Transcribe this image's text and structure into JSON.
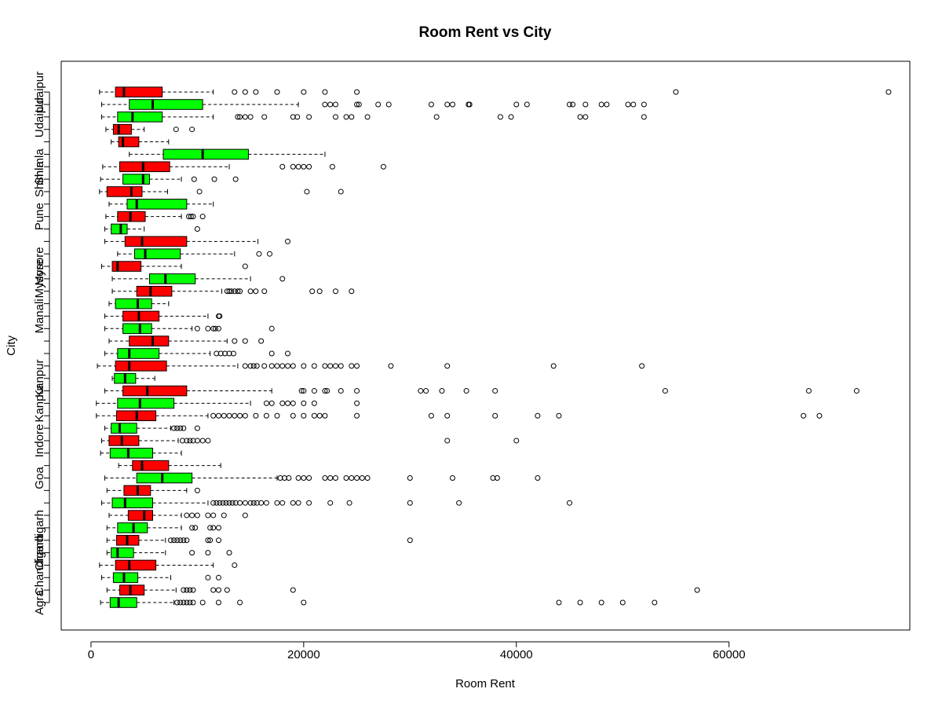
{
  "chart_data": {
    "type": "boxplot",
    "orientation": "horizontal",
    "title": "Room Rent vs City",
    "xlabel": "Room Rent",
    "ylabel": "City",
    "xlim": [
      -2800,
      77000
    ],
    "xticks": [
      0,
      20000,
      40000,
      60000
    ],
    "xtick_labels": [
      "0",
      "20000",
      "40000",
      "60000"
    ],
    "colors": {
      "alternate_a": "#00ff00",
      "alternate_b": "#ff0000",
      "outline": "#000000"
    },
    "y_tick_labels": [
      {
        "label": "Agra",
        "row": 1
      },
      {
        "label": "Chandigarh",
        "row": 4
      },
      {
        "label": "Chandigarh",
        "row": 6
      },
      {
        "label": "Goa",
        "row": 11
      },
      {
        "label": "Indore",
        "row": 14
      },
      {
        "label": "Kanpur",
        "row": 17
      },
      {
        "label": "Kanpur",
        "row": 19
      },
      {
        "label": "Manali",
        "row": 24
      },
      {
        "label": "Mysore",
        "row": 27
      },
      {
        "label": "Mysore",
        "row": 28
      },
      {
        "label": "Pune",
        "row": 32
      },
      {
        "label": "Shimla",
        "row": 35
      },
      {
        "label": "Shimla",
        "row": 36
      },
      {
        "label": "Udaipur",
        "row": 40
      },
      {
        "label": "Udaipur",
        "row": 42
      }
    ],
    "boxes": [
      {
        "row": 1,
        "color": "green",
        "wl": 900,
        "q1": 1800,
        "med": 2600,
        "q3": 4300,
        "wh": 7800,
        "outliers": [
          8100,
          8400,
          8700,
          9000,
          9300,
          9600,
          10500,
          12000,
          14000,
          20000,
          44000,
          46000,
          48000,
          50000,
          53000
        ]
      },
      {
        "row": 2,
        "color": "red",
        "wl": 1500,
        "q1": 2700,
        "med": 3700,
        "q3": 5000,
        "wh": 8000,
        "outliers": [
          8700,
          9000,
          9300,
          9600,
          11500,
          12000,
          12800,
          19000,
          57000
        ]
      },
      {
        "row": 3,
        "color": "green",
        "wl": 1000,
        "q1": 2100,
        "med": 3100,
        "q3": 4400,
        "wh": 7500,
        "outliers": [
          11000,
          12000
        ]
      },
      {
        "row": 4,
        "color": "red",
        "wl": 800,
        "q1": 2300,
        "med": 3600,
        "q3": 6100,
        "wh": 11500,
        "outliers": [
          13500
        ]
      },
      {
        "row": 5,
        "color": "green",
        "wl": 1500,
        "q1": 1900,
        "med": 2500,
        "q3": 4000,
        "wh": 7000,
        "outliers": [
          9500,
          11000,
          13000
        ]
      },
      {
        "row": 6,
        "color": "red",
        "wl": 1500,
        "q1": 2400,
        "med": 3400,
        "q3": 4500,
        "wh": 7000,
        "outliers": [
          7500,
          7800,
          8100,
          8400,
          8700,
          9000,
          11000,
          11200,
          12000,
          30000
        ]
      },
      {
        "row": 7,
        "color": "green",
        "wl": 1500,
        "q1": 2500,
        "med": 4000,
        "q3": 5300,
        "wh": 8500,
        "outliers": [
          9500,
          9800,
          11200,
          11500,
          12000
        ]
      },
      {
        "row": 8,
        "color": "red",
        "wl": 1700,
        "q1": 3500,
        "med": 5000,
        "q3": 5800,
        "wh": 8500,
        "outliers": [
          9000,
          9500,
          10000,
          11000,
          11500,
          12500,
          14500
        ]
      },
      {
        "row": 9,
        "color": "green",
        "wl": 1000,
        "q1": 2000,
        "med": 3200,
        "q3": 5800,
        "wh": 11000,
        "outliers": [
          11500,
          11800,
          12100,
          12400,
          12700,
          13000,
          13300,
          13600,
          14000,
          14500,
          15000,
          15300,
          15600,
          16000,
          16500,
          17500,
          18000,
          19000,
          19500,
          20500,
          22500,
          24300,
          30000,
          34600,
          45000
        ]
      },
      {
        "row": 10,
        "color": "red",
        "wl": 1500,
        "q1": 3100,
        "med": 4400,
        "q3": 5600,
        "wh": 9000,
        "outliers": [
          10000
        ]
      },
      {
        "row": 11,
        "color": "green",
        "wl": 1300,
        "q1": 4300,
        "med": 6700,
        "q3": 9500,
        "wh": 17500,
        "outliers": [
          17800,
          18200,
          18600,
          19500,
          20000,
          20500,
          22000,
          22500,
          23000,
          24000,
          24500,
          25000,
          25500,
          26000,
          30000,
          34000,
          37800,
          38200,
          42000
        ]
      },
      {
        "row": 12,
        "color": "red",
        "wl": 2600,
        "q1": 3900,
        "med": 4800,
        "q3": 7300,
        "wh": 12200,
        "outliers": []
      },
      {
        "row": 13,
        "color": "green",
        "wl": 900,
        "q1": 1800,
        "med": 3500,
        "q3": 5800,
        "wh": 8500,
        "outliers": []
      },
      {
        "row": 14,
        "color": "red",
        "wl": 1000,
        "q1": 1700,
        "med": 2900,
        "q3": 4500,
        "wh": 8200,
        "outliers": [
          8600,
          9000,
          9300,
          9600,
          10000,
          10500,
          11000,
          33500,
          40000
        ]
      },
      {
        "row": 15,
        "color": "green",
        "wl": 1300,
        "q1": 1900,
        "med": 2700,
        "q3": 4300,
        "wh": 7500,
        "outliers": [
          7800,
          8100,
          8400,
          8700,
          10000
        ]
      },
      {
        "row": 16,
        "color": "red",
        "wl": 500,
        "q1": 2400,
        "med": 4300,
        "q3": 6100,
        "wh": 11000,
        "outliers": [
          11500,
          12000,
          12500,
          13000,
          13500,
          14000,
          14500,
          15500,
          16500,
          17500,
          19000,
          20000,
          21000,
          21500,
          22000,
          25000,
          32000,
          33500,
          38000,
          42000,
          44000,
          67000,
          68500
        ]
      },
      {
        "row": 17,
        "color": "green",
        "wl": 500,
        "q1": 2500,
        "med": 4600,
        "q3": 7800,
        "wh": 15000,
        "outliers": [
          16500,
          17000,
          18000,
          18500,
          19000,
          20000,
          21000,
          25000
        ]
      },
      {
        "row": 18,
        "color": "red",
        "wl": 1300,
        "q1": 3000,
        "med": 5300,
        "q3": 9000,
        "wh": 17000,
        "outliers": [
          19800,
          20000,
          21000,
          22000,
          22200,
          23500,
          25000,
          31000,
          31500,
          33000,
          35300,
          38000,
          54000,
          67500,
          72000
        ]
      },
      {
        "row": 19,
        "color": "green",
        "wl": 2000,
        "q1": 2200,
        "med": 3200,
        "q3": 4200,
        "wh": 6000,
        "outliers": []
      },
      {
        "row": 20,
        "color": "red",
        "wl": 600,
        "q1": 2300,
        "med": 3600,
        "q3": 7100,
        "wh": 13800,
        "outliers": [
          14500,
          15000,
          15300,
          15600,
          16300,
          17000,
          17500,
          18000,
          18500,
          19000,
          20000,
          21000,
          22000,
          22500,
          23000,
          23500,
          24500,
          25000,
          28200,
          33500,
          43500,
          51800
        ]
      },
      {
        "row": 21,
        "color": "green",
        "wl": 1300,
        "q1": 2500,
        "med": 3600,
        "q3": 6400,
        "wh": 11200,
        "outliers": [
          11800,
          12200,
          12600,
          13000,
          13400,
          17000,
          18500
        ]
      },
      {
        "row": 22,
        "color": "red",
        "wl": 1700,
        "q1": 3600,
        "med": 5800,
        "q3": 7300,
        "wh": 12800,
        "outliers": [
          13500,
          14500,
          16000
        ]
      },
      {
        "row": 23,
        "color": "green",
        "wl": 1300,
        "q1": 3000,
        "med": 4600,
        "q3": 5700,
        "wh": 9500,
        "outliers": [
          10000,
          11000,
          11500,
          11700,
          12000,
          17000
        ]
      },
      {
        "row": 24,
        "color": "red",
        "wl": 1300,
        "q1": 3000,
        "med": 4500,
        "q3": 6400,
        "wh": 11000,
        "outliers": [
          12000,
          12100
        ]
      },
      {
        "row": 25,
        "color": "green",
        "wl": 1700,
        "q1": 2300,
        "med": 4400,
        "q3": 5700,
        "wh": 7300,
        "outliers": []
      },
      {
        "row": 26,
        "color": "red",
        "wl": 2000,
        "q1": 4300,
        "med": 5600,
        "q3": 7600,
        "wh": 12300,
        "outliers": [
          12800,
          13000,
          13200,
          13500,
          13800,
          14000,
          15000,
          15500,
          16300,
          20800,
          21500,
          23000,
          24500
        ]
      },
      {
        "row": 27,
        "color": "green",
        "wl": 2000,
        "q1": 5500,
        "med": 7000,
        "q3": 9800,
        "wh": 15000,
        "outliers": [
          18000
        ]
      },
      {
        "row": 28,
        "color": "red",
        "wl": 1000,
        "q1": 2000,
        "med": 2500,
        "q3": 4700,
        "wh": 8500,
        "outliers": [
          14500
        ]
      },
      {
        "row": 29,
        "color": "green",
        "wl": 2500,
        "q1": 4100,
        "med": 5100,
        "q3": 8400,
        "wh": 13500,
        "outliers": [
          15800,
          16800
        ]
      },
      {
        "row": 30,
        "color": "red",
        "wl": 1300,
        "q1": 3200,
        "med": 4800,
        "q3": 9000,
        "wh": 15700,
        "outliers": [
          18500
        ]
      },
      {
        "row": 31,
        "color": "green",
        "wl": 1300,
        "q1": 1900,
        "med": 2800,
        "q3": 3400,
        "wh": 5000,
        "outliers": [
          10000
        ]
      },
      {
        "row": 32,
        "color": "red",
        "wl": 1400,
        "q1": 2500,
        "med": 3700,
        "q3": 5100,
        "wh": 8500,
        "outliers": [
          9200,
          9400,
          9600,
          10500
        ]
      },
      {
        "row": 33,
        "color": "green",
        "wl": 1700,
        "q1": 3400,
        "med": 4300,
        "q3": 9000,
        "wh": 11500,
        "outliers": []
      },
      {
        "row": 34,
        "color": "red",
        "wl": 800,
        "q1": 1500,
        "med": 3800,
        "q3": 4800,
        "wh": 7200,
        "outliers": [
          10200,
          20300,
          23500
        ]
      },
      {
        "row": 35,
        "color": "green",
        "wl": 900,
        "q1": 3000,
        "med": 4900,
        "q3": 5500,
        "wh": 8500,
        "outliers": [
          9700,
          11600,
          13600
        ]
      },
      {
        "row": 36,
        "color": "red",
        "wl": 1100,
        "q1": 2700,
        "med": 4900,
        "q3": 7400,
        "wh": 13000,
        "outliers": [
          18000,
          19000,
          19500,
          20000,
          20500,
          22700,
          27500
        ]
      },
      {
        "row": 37,
        "color": "green",
        "wl": 3600,
        "q1": 6800,
        "med": 10500,
        "q3": 14800,
        "wh": 22000,
        "outliers": []
      },
      {
        "row": 38,
        "color": "red",
        "wl": 1900,
        "q1": 2600,
        "med": 3000,
        "q3": 4500,
        "wh": 7300,
        "outliers": []
      },
      {
        "row": 39,
        "color": "red",
        "wl": 1400,
        "q1": 2100,
        "med": 2600,
        "q3": 3800,
        "wh": 5000,
        "outliers": [
          8000,
          9500
        ]
      },
      {
        "row": 40,
        "color": "green",
        "wl": 1000,
        "q1": 2500,
        "med": 3900,
        "q3": 6700,
        "wh": 11500,
        "outliers": [
          13800,
          14000,
          14500,
          15000,
          16300,
          19000,
          19400,
          20500,
          23000,
          24000,
          24500,
          26000,
          32500,
          38500,
          39500,
          46000,
          46500,
          52000
        ]
      },
      {
        "row": 41,
        "color": "green",
        "wl": 1000,
        "q1": 3600,
        "med": 5800,
        "q3": 10500,
        "wh": 19500,
        "outliers": [
          22000,
          22500,
          23000,
          25000,
          25200,
          27000,
          28000,
          32000,
          33500,
          34000,
          35500,
          35600,
          40000,
          41000,
          45000,
          45300,
          46500,
          48000,
          48500,
          50500,
          51000,
          52000
        ]
      },
      {
        "row": 42,
        "color": "red",
        "wl": 800,
        "q1": 2300,
        "med": 3100,
        "q3": 6700,
        "wh": 11500,
        "outliers": [
          13500,
          14500,
          15500,
          17500,
          20000,
          22000,
          25000,
          55000,
          75000
        ]
      }
    ]
  }
}
